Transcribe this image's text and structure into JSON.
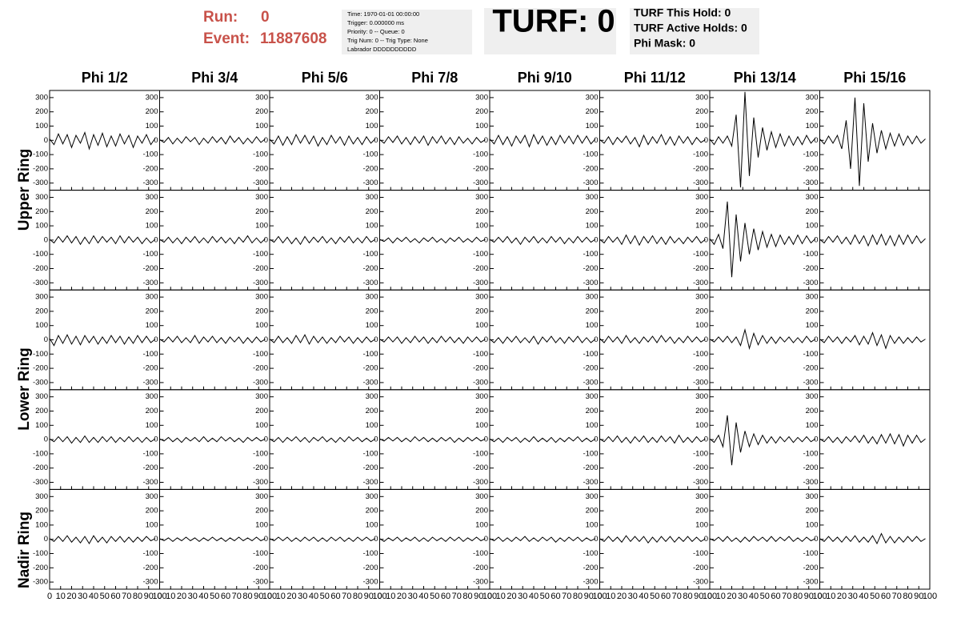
{
  "header": {
    "run_label": "Run:",
    "run": "0",
    "event_label": "Event:",
    "event": "11887608"
  },
  "info": [
    "Time: 1970-01-01 00:00:00",
    "Trigger: 0.000000 ms",
    "Priority: 0 -- Queue: 0",
    "Trig Num: 0 -- Trig Type: None",
    "Labrador DDDDDDDDDD"
  ],
  "turf": "TURF: 0",
  "turf_info": [
    "TURF This Hold: 0",
    "TURF Active Holds: 0",
    "Phi Mask: 0"
  ],
  "columns": [
    "Phi 1/2",
    "Phi 3/4",
    "Phi 5/6",
    "Phi 7/8",
    "Phi 9/10",
    "Phi 11/12",
    "Phi 13/14",
    "Phi 15/16"
  ],
  "rings": [
    "Upper Ring",
    "Lower Ring",
    "Nadir Ring"
  ],
  "chart_data": {
    "type": "line",
    "color": "#000000",
    "xlim": [
      0,
      100
    ],
    "xticks": [
      0,
      10,
      20,
      30,
      40,
      50,
      60,
      70,
      80,
      90,
      100
    ],
    "ylim": [
      -350,
      350
    ],
    "yticks": [
      -300,
      -200,
      -100,
      0,
      100,
      200,
      300
    ],
    "x": [
      0,
      4,
      8,
      12,
      16,
      20,
      24,
      28,
      32,
      36,
      40,
      44,
      48,
      52,
      56,
      60,
      64,
      68,
      72,
      76,
      80,
      84,
      88,
      92,
      96
    ],
    "series": [
      {
        "values": [
          10,
          -30,
          45,
          -25,
          40,
          -50,
          35,
          -20,
          55,
          -60,
          40,
          -35,
          50,
          -45,
          30,
          -40,
          45,
          -25,
          35,
          -50,
          30,
          -20,
          40,
          -30,
          15
        ]
      },
      {
        "values": [
          5,
          -15,
          20,
          -25,
          15,
          -20,
          25,
          -10,
          20,
          -30,
          15,
          -20,
          25,
          -15,
          20,
          -25,
          30,
          -15,
          20,
          -25,
          15,
          -20,
          25,
          -15,
          10
        ]
      },
      {
        "values": [
          8,
          -25,
          30,
          -35,
          25,
          -30,
          40,
          -20,
          35,
          -25,
          30,
          -40,
          20,
          -30,
          35,
          -20,
          25,
          -35,
          30,
          -25,
          20,
          -30,
          25,
          -20,
          10
        ]
      },
      {
        "values": [
          5,
          -20,
          25,
          -15,
          30,
          -25,
          20,
          -30,
          25,
          -20,
          30,
          -35,
          25,
          -20,
          30,
          -25,
          20,
          -30,
          25,
          -20,
          15,
          -25,
          20,
          -15,
          5
        ]
      },
      {
        "values": [
          10,
          -25,
          35,
          -30,
          25,
          -40,
          30,
          -20,
          35,
          -45,
          40,
          -25,
          30,
          -35,
          25,
          -30,
          35,
          -20,
          30,
          -25,
          35,
          -20,
          30,
          -25,
          10
        ]
      },
      {
        "values": [
          5,
          -20,
          25,
          -30,
          20,
          -15,
          30,
          -25,
          20,
          -45,
          35,
          -30,
          25,
          -20,
          40,
          -30,
          25,
          -35,
          30,
          -20,
          25,
          -30,
          20,
          -15,
          5
        ]
      },
      {
        "values": [
          10,
          -30,
          25,
          -20,
          30,
          -40,
          180,
          -330,
          340,
          -250,
          160,
          -120,
          90,
          -70,
          60,
          -50,
          45,
          -40,
          30,
          -35,
          25,
          -30,
          35,
          -20,
          15
        ]
      },
      {
        "values": [
          10,
          -25,
          30,
          -20,
          35,
          -60,
          140,
          -200,
          300,
          -320,
          260,
          -150,
          120,
          -90,
          70,
          -60,
          50,
          -40,
          45,
          -35,
          30,
          -25,
          30,
          -20,
          10
        ]
      },
      {
        "values": [
          5,
          -20,
          25,
          -15,
          30,
          -20,
          25,
          -30,
          20,
          -25,
          30,
          -20,
          25,
          -15,
          20,
          -25,
          30,
          -20,
          25,
          -15,
          20,
          -25,
          15,
          -20,
          5
        ]
      },
      {
        "values": [
          5,
          -15,
          20,
          -20,
          15,
          -25,
          20,
          -15,
          25,
          -20,
          15,
          -20,
          25,
          -15,
          20,
          -20,
          15,
          -25,
          20,
          -15,
          30,
          -20,
          15,
          -20,
          10
        ]
      },
      {
        "values": [
          5,
          -15,
          25,
          -20,
          20,
          -25,
          15,
          -30,
          25,
          -20,
          20,
          -15,
          25,
          -20,
          15,
          -25,
          20,
          -15,
          25,
          -20,
          15,
          -20,
          25,
          -15,
          5
        ]
      },
      {
        "values": [
          5,
          -10,
          15,
          -20,
          15,
          -10,
          20,
          -15,
          10,
          -20,
          15,
          -10,
          20,
          -15,
          10,
          -20,
          15,
          -10,
          20,
          -15,
          10,
          -15,
          20,
          -10,
          5
        ]
      },
      {
        "values": [
          5,
          -15,
          20,
          -15,
          25,
          -20,
          15,
          -30,
          20,
          -15,
          25,
          -20,
          15,
          -20,
          25,
          -15,
          20,
          -25,
          15,
          -20,
          25,
          -15,
          20,
          -15,
          5
        ]
      },
      {
        "values": [
          5,
          -20,
          25,
          -15,
          20,
          -30,
          35,
          -25,
          30,
          -35,
          25,
          -20,
          30,
          -25,
          20,
          -30,
          25,
          -20,
          15,
          -25,
          20,
          -15,
          25,
          -20,
          5
        ]
      },
      {
        "values": [
          10,
          -30,
          40,
          -60,
          270,
          -260,
          180,
          -150,
          120,
          -100,
          80,
          -70,
          60,
          -50,
          40,
          -45,
          35,
          -30,
          25,
          -30,
          35,
          -25,
          30,
          -20,
          10
        ]
      },
      {
        "values": [
          5,
          -20,
          25,
          -15,
          30,
          -25,
          20,
          -30,
          35,
          -25,
          30,
          -40,
          35,
          -30,
          40,
          -35,
          30,
          -40,
          35,
          -30,
          35,
          -25,
          30,
          -20,
          10
        ]
      },
      {
        "values": [
          10,
          -40,
          30,
          -25,
          35,
          -30,
          25,
          -35,
          30,
          -20,
          25,
          -30,
          20,
          -25,
          30,
          -20,
          25,
          -30,
          20,
          -25,
          30,
          -20,
          25,
          -20,
          5
        ]
      },
      {
        "values": [
          5,
          -15,
          20,
          -15,
          25,
          -20,
          15,
          -20,
          30,
          -25,
          20,
          -15,
          25,
          -20,
          15,
          -25,
          20,
          -15,
          20,
          -25,
          15,
          -20,
          20,
          -15,
          5
        ]
      },
      {
        "values": [
          5,
          -20,
          25,
          -20,
          15,
          -25,
          30,
          -20,
          35,
          -30,
          25,
          -20,
          20,
          -25,
          15,
          -20,
          25,
          -15,
          20,
          -25,
          15,
          -20,
          20,
          -15,
          5
        ]
      },
      {
        "values": [
          5,
          -15,
          20,
          -15,
          20,
          -25,
          15,
          -20,
          25,
          -15,
          20,
          -25,
          15,
          -20,
          25,
          -15,
          20,
          -20,
          15,
          -25,
          20,
          -15,
          20,
          -15,
          5
        ]
      },
      {
        "values": [
          5,
          -20,
          15,
          -25,
          20,
          -15,
          25,
          -20,
          15,
          -20,
          25,
          -30,
          20,
          -15,
          25,
          -20,
          15,
          -25,
          20,
          -15,
          25,
          -20,
          15,
          -20,
          5
        ]
      },
      {
        "values": [
          10,
          -20,
          25,
          -15,
          20,
          -25,
          30,
          -20,
          15,
          -25,
          20,
          -15,
          25,
          -20,
          30,
          -15,
          20,
          -25,
          15,
          -20,
          25,
          -15,
          20,
          -15,
          5
        ]
      },
      {
        "values": [
          5,
          -15,
          20,
          -15,
          25,
          -20,
          20,
          -40,
          70,
          -60,
          45,
          -35,
          30,
          -25,
          20,
          -25,
          20,
          -15,
          20,
          -20,
          15,
          -20,
          25,
          -15,
          5
        ]
      },
      {
        "values": [
          5,
          -20,
          25,
          -15,
          20,
          -25,
          20,
          -15,
          30,
          -35,
          25,
          -30,
          50,
          -40,
          35,
          -60,
          30,
          -25,
          20,
          -25,
          15,
          -20,
          20,
          -15,
          5
        ]
      },
      {
        "values": [
          5,
          -15,
          20,
          -15,
          20,
          -25,
          15,
          -20,
          25,
          -20,
          15,
          -20,
          20,
          -15,
          20,
          -20,
          15,
          -15,
          20,
          -15,
          15,
          -20,
          15,
          -15,
          5
        ]
      },
      {
        "values": [
          5,
          -10,
          15,
          -15,
          10,
          -20,
          15,
          -10,
          15,
          -15,
          20,
          -15,
          10,
          -15,
          20,
          -10,
          15,
          -15,
          10,
          -20,
          15,
          -10,
          15,
          -10,
          5
        ]
      },
      {
        "values": [
          5,
          -15,
          15,
          -20,
          15,
          -10,
          20,
          -15,
          15,
          -20,
          15,
          -10,
          20,
          -15,
          10,
          -20,
          15,
          -15,
          20,
          -10,
          15,
          -15,
          10,
          -15,
          5
        ]
      },
      {
        "values": [
          5,
          -10,
          15,
          -10,
          15,
          -15,
          10,
          -15,
          20,
          -10,
          15,
          -15,
          10,
          -15,
          15,
          -10,
          15,
          -20,
          10,
          -15,
          15,
          -10,
          15,
          -10,
          5
        ]
      },
      {
        "values": [
          5,
          -15,
          10,
          -20,
          15,
          -10,
          15,
          -20,
          10,
          -15,
          20,
          -15,
          10,
          -15,
          15,
          -20,
          10,
          -15,
          15,
          -10,
          20,
          -15,
          10,
          -15,
          5
        ]
      },
      {
        "values": [
          5,
          -15,
          20,
          -15,
          25,
          -20,
          15,
          -25,
          20,
          -15,
          25,
          -20,
          15,
          -20,
          25,
          -15,
          20,
          -25,
          30,
          -20,
          15,
          -20,
          20,
          -15,
          5
        ]
      },
      {
        "values": [
          5,
          -20,
          30,
          -50,
          170,
          -180,
          120,
          -90,
          60,
          -50,
          40,
          -35,
          30,
          -25,
          20,
          -25,
          20,
          -15,
          20,
          -20,
          15,
          -15,
          20,
          -15,
          5
        ]
      },
      {
        "values": [
          5,
          -15,
          20,
          -20,
          15,
          -25,
          20,
          -15,
          25,
          -20,
          30,
          -25,
          20,
          -30,
          35,
          -25,
          40,
          -30,
          35,
          -45,
          30,
          -25,
          30,
          -20,
          5
        ]
      },
      {
        "values": [
          5,
          -15,
          20,
          -15,
          25,
          -20,
          15,
          -25,
          20,
          -30,
          25,
          -20,
          15,
          -25,
          20,
          -15,
          20,
          -20,
          15,
          -20,
          15,
          -15,
          20,
          -10,
          5
        ]
      },
      {
        "values": [
          5,
          -10,
          10,
          -15,
          10,
          -10,
          15,
          -10,
          10,
          -15,
          10,
          -10,
          15,
          -10,
          10,
          -15,
          10,
          -10,
          15,
          -10,
          10,
          -10,
          15,
          -10,
          5
        ]
      },
      {
        "values": [
          5,
          -10,
          15,
          -10,
          15,
          -15,
          10,
          -15,
          15,
          -10,
          15,
          -15,
          10,
          -15,
          15,
          -10,
          15,
          -15,
          10,
          -15,
          15,
          -10,
          15,
          -10,
          5
        ]
      },
      {
        "values": [
          5,
          -15,
          10,
          -10,
          15,
          -15,
          10,
          -10,
          15,
          -15,
          10,
          -15,
          15,
          -10,
          10,
          -15,
          15,
          -10,
          15,
          -15,
          10,
          -10,
          15,
          -10,
          5
        ]
      },
      {
        "values": [
          5,
          -10,
          15,
          -15,
          10,
          -15,
          15,
          -10,
          20,
          -15,
          10,
          -15,
          15,
          -10,
          15,
          -20,
          10,
          -15,
          15,
          -10,
          15,
          -15,
          10,
          -10,
          5
        ]
      },
      {
        "values": [
          5,
          -15,
          20,
          -15,
          15,
          -20,
          25,
          -15,
          20,
          -15,
          20,
          -25,
          15,
          -20,
          20,
          -15,
          20,
          -20,
          15,
          -15,
          20,
          -15,
          15,
          -15,
          5
        ]
      },
      {
        "values": [
          5,
          -10,
          15,
          -15,
          20,
          -15,
          10,
          -20,
          15,
          -15,
          20,
          -10,
          15,
          -15,
          20,
          -15,
          15,
          -10,
          20,
          -15,
          10,
          -15,
          15,
          -10,
          5
        ]
      },
      {
        "values": [
          5,
          -15,
          20,
          -15,
          15,
          -20,
          20,
          -15,
          25,
          -20,
          15,
          -20,
          25,
          -30,
          40,
          -25,
          20,
          -25,
          15,
          -20,
          20,
          -15,
          20,
          -15,
          5
        ]
      }
    ]
  }
}
